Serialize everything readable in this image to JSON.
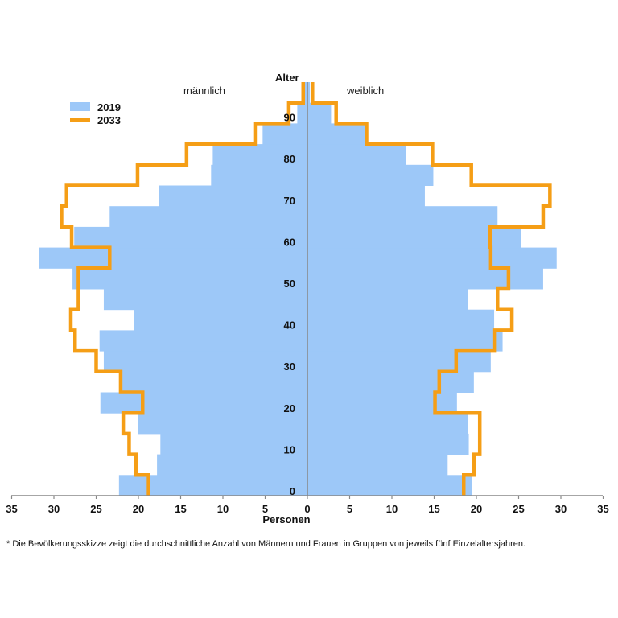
{
  "chart_data": {
    "type": "bar",
    "subtype": "population-pyramid",
    "y_title": "Alter",
    "xlabel": "Personen",
    "xlim": [
      -35,
      35
    ],
    "x_ticks": [
      35,
      30,
      25,
      20,
      15,
      10,
      5,
      0,
      5,
      10,
      15,
      20,
      25,
      30,
      35
    ],
    "y_ticks": [
      0,
      10,
      20,
      30,
      40,
      50,
      60,
      70,
      80,
      90
    ],
    "side_labels": {
      "left": "männlich",
      "right": "weiblich"
    },
    "age_groups": [
      "0-4",
      "5-9",
      "10-14",
      "15-19",
      "20-24",
      "25-29",
      "30-34",
      "35-39",
      "40-44",
      "45-49",
      "50-54",
      "55-59",
      "60-64",
      "65-69",
      "70-74",
      "75-79",
      "80-84",
      "85-89",
      "90-94",
      "95+"
    ],
    "legend": [
      {
        "name": "2019",
        "style": "bar",
        "color": "#9DC8F8"
      },
      {
        "name": "2033",
        "style": "line",
        "color": "#F59E16"
      }
    ],
    "series": [
      {
        "name": "2019",
        "sex": "männlich",
        "values": [
          22.3,
          17.8,
          17.4,
          20.0,
          24.5,
          21.9,
          24.1,
          24.6,
          20.5,
          24.1,
          27.8,
          31.8,
          27.6,
          23.4,
          17.6,
          11.4,
          11.2,
          5.3,
          1.2,
          0.3
        ]
      },
      {
        "name": "2019",
        "sex": "weiblich",
        "values": [
          19.5,
          16.6,
          19.1,
          19.0,
          17.7,
          19.7,
          21.7,
          23.1,
          22.1,
          19.0,
          27.9,
          29.5,
          25.3,
          22.5,
          13.9,
          14.9,
          11.7,
          6.8,
          2.8,
          0.3
        ]
      },
      {
        "name": "2033",
        "sex": "männlich",
        "values": [
          18.8,
          20.3,
          21.1,
          21.8,
          19.5,
          22.1,
          25.0,
          27.5,
          28.0,
          27.1,
          27.1,
          23.4,
          27.9,
          29.1,
          28.5,
          20.1,
          14.3,
          6.1,
          2.2,
          0.5
        ]
      },
      {
        "name": "2033",
        "sex": "weiblich",
        "values": [
          18.5,
          19.7,
          20.4,
          20.4,
          15.1,
          15.6,
          17.6,
          22.2,
          24.2,
          22.5,
          23.8,
          21.7,
          21.6,
          27.9,
          28.7,
          19.4,
          14.8,
          7.0,
          3.4,
          0.6
        ]
      }
    ]
  },
  "footnote": "*  Die Bevölkerungsskizze zeigt die durchschnittliche Anzahl von Männern und Frauen in Gruppen von jeweils fünf Einzelaltersjahren."
}
